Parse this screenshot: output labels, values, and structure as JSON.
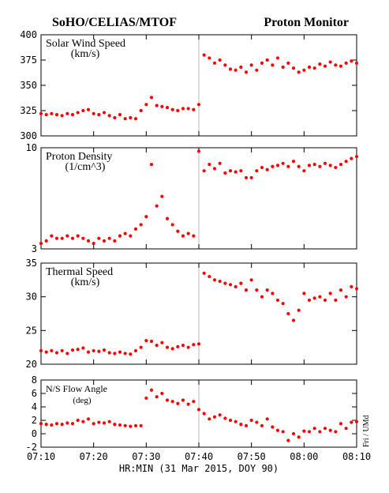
{
  "title_left": "SoHO/CELIAS/MTOF",
  "title_right": "Proton Monitor",
  "x_label": "HR:MIN (31 Mar 2015, DOY 90)",
  "credit": "Fri / UMd",
  "marker_x": 460,
  "chart_data": [
    {
      "type": "scatter",
      "title": "Solar Wind Speed",
      "subtitle": "(km/s)",
      "color": "#ff0000",
      "xlim": [
        430,
        490
      ],
      "xticks": [
        430,
        440,
        450,
        460,
        470,
        480,
        490
      ],
      "ylim": [
        300,
        400
      ],
      "yticks": [
        300,
        325,
        350,
        375,
        400
      ],
      "x": [
        430,
        431,
        432,
        433,
        434,
        435,
        436,
        437,
        438,
        439,
        440,
        441,
        442,
        443,
        444,
        445,
        446,
        447,
        448,
        449,
        450,
        451,
        452,
        453,
        454,
        455,
        456,
        457,
        458,
        459,
        460,
        461,
        462,
        463,
        464,
        465,
        466,
        467,
        468,
        469,
        470,
        471,
        472,
        473,
        474,
        475,
        476,
        477,
        478,
        479,
        480,
        481,
        482,
        483,
        484,
        485,
        486,
        487,
        488,
        489,
        490
      ],
      "values": [
        322,
        321,
        322,
        321,
        320,
        322,
        321,
        323,
        325,
        326,
        322,
        321,
        323,
        320,
        318,
        321,
        317,
        318,
        317,
        325,
        331,
        338,
        330,
        329,
        328,
        326,
        325,
        327,
        327,
        326,
        331,
        380,
        377,
        372,
        375,
        370,
        366,
        365,
        368,
        363,
        370,
        365,
        372,
        375,
        370,
        377,
        368,
        372,
        367,
        363,
        365,
        368,
        367,
        371,
        369,
        373,
        370,
        369,
        372,
        374,
        372
      ]
    },
    {
      "type": "scatter",
      "title": "Proton Density",
      "subtitle": "(1/cm^3)",
      "color": "#ff0000",
      "log": true,
      "xlim": [
        430,
        490
      ],
      "xticks": [
        430,
        440,
        450,
        460,
        470,
        480,
        490
      ],
      "ylim": [
        3,
        10
      ],
      "yticks": [
        3,
        10
      ],
      "x": [
        430,
        431,
        432,
        433,
        434,
        435,
        436,
        437,
        438,
        439,
        440,
        441,
        442,
        443,
        444,
        445,
        446,
        447,
        448,
        449,
        450,
        451,
        452,
        453,
        454,
        455,
        456,
        457,
        458,
        459,
        460,
        461,
        462,
        463,
        464,
        465,
        466,
        467,
        468,
        469,
        470,
        471,
        472,
        473,
        474,
        475,
        476,
        477,
        478,
        479,
        480,
        481,
        482,
        483,
        484,
        485,
        486,
        487,
        488,
        489,
        490
      ],
      "values": [
        3.2,
        3.3,
        3.5,
        3.4,
        3.4,
        3.5,
        3.4,
        3.5,
        3.4,
        3.3,
        3.2,
        3.4,
        3.3,
        3.4,
        3.3,
        3.5,
        3.6,
        3.5,
        3.8,
        4.0,
        4.4,
        8.2,
        5.0,
        5.6,
        4.3,
        4.0,
        3.7,
        3.5,
        3.6,
        3.5,
        9.6,
        7.6,
        8.2,
        7.8,
        8.3,
        7.4,
        7.6,
        7.5,
        7.6,
        7.0,
        7.0,
        7.6,
        7.9,
        7.7,
        8.0,
        8.1,
        8.3,
        8.0,
        8.5,
        8.0,
        7.6,
        8.1,
        8.2,
        8.0,
        8.3,
        8.1,
        7.9,
        8.2,
        8.5,
        8.8,
        9.0
      ]
    },
    {
      "type": "scatter",
      "title": "Thermal Speed",
      "subtitle": "(km/s)",
      "color": "#ff0000",
      "xlim": [
        430,
        490
      ],
      "xticks": [
        430,
        440,
        450,
        460,
        470,
        480,
        490
      ],
      "ylim": [
        20,
        35
      ],
      "yticks": [
        20,
        25,
        30,
        35
      ],
      "x": [
        430,
        431,
        432,
        433,
        434,
        435,
        436,
        437,
        438,
        439,
        440,
        441,
        442,
        443,
        444,
        445,
        446,
        447,
        448,
        449,
        450,
        451,
        452,
        453,
        454,
        455,
        456,
        457,
        458,
        459,
        460,
        461,
        462,
        463,
        464,
        465,
        466,
        467,
        468,
        469,
        470,
        471,
        472,
        473,
        474,
        475,
        476,
        477,
        478,
        479,
        480,
        481,
        482,
        483,
        484,
        485,
        486,
        487,
        488,
        489,
        490
      ],
      "values": [
        22,
        21.8,
        22,
        21.7,
        22,
        21.6,
        22.1,
        22.2,
        22.4,
        21.8,
        22,
        21.9,
        22.1,
        21.7,
        21.6,
        21.8,
        21.6,
        21.5,
        22,
        22.5,
        23.5,
        23.4,
        22.8,
        23.2,
        22.5,
        22.3,
        22.6,
        22.8,
        22.5,
        22.9,
        23,
        33.5,
        33,
        32.5,
        32.3,
        32,
        31.8,
        31.5,
        32,
        31,
        32.5,
        31,
        30,
        31,
        30.5,
        29.5,
        29,
        27.5,
        26.5,
        28,
        30.5,
        29.5,
        29.8,
        30,
        29.5,
        30.5,
        29.5,
        31,
        30,
        31.5,
        31.2
      ]
    },
    {
      "type": "scatter",
      "title": "N/S Flow Angle",
      "subtitle": "(deg)",
      "color": "#ff0000",
      "xlim": [
        430,
        490
      ],
      "xticks": [
        {
          "value": 430,
          "label": "07:10"
        },
        {
          "value": 440,
          "label": "07:20"
        },
        {
          "value": 450,
          "label": "07:30"
        },
        {
          "value": 460,
          "label": "07:40"
        },
        {
          "value": 470,
          "label": "07:50"
        },
        {
          "value": 480,
          "label": "08:00"
        },
        {
          "value": 490,
          "label": "08:10"
        }
      ],
      "ylim": [
        -2,
        8
      ],
      "yticks": [
        -2,
        0,
        2,
        4,
        6,
        8
      ],
      "x": [
        430,
        431,
        432,
        433,
        434,
        435,
        436,
        437,
        438,
        439,
        440,
        441,
        442,
        443,
        444,
        445,
        446,
        447,
        448,
        449,
        450,
        451,
        452,
        453,
        454,
        455,
        456,
        457,
        458,
        459,
        460,
        461,
        462,
        463,
        464,
        465,
        466,
        467,
        468,
        469,
        470,
        471,
        472,
        473,
        474,
        475,
        476,
        477,
        478,
        479,
        480,
        481,
        482,
        483,
        484,
        485,
        486,
        487,
        488,
        489,
        490
      ],
      "values": [
        1.5,
        1.4,
        1.3,
        1.5,
        1.4,
        1.6,
        1.5,
        2.0,
        1.8,
        2.2,
        1.5,
        1.7,
        1.6,
        1.8,
        1.4,
        1.3,
        1.2,
        1.1,
        1.2,
        1.2,
        5.3,
        6.5,
        5.5,
        6,
        5,
        4.8,
        4.5,
        5,
        4.4,
        4.8,
        3.6,
        3,
        2.2,
        2.5,
        2.8,
        2.3,
        2,
        1.8,
        1.4,
        1.2,
        2,
        1.7,
        1.2,
        2.2,
        1,
        0.5,
        0.3,
        -1,
        0,
        -0.5,
        0.4,
        0.3,
        0.8,
        0.3,
        0.8,
        0.5,
        0.3,
        1.5,
        0.8,
        1.7,
        1.8
      ]
    }
  ]
}
